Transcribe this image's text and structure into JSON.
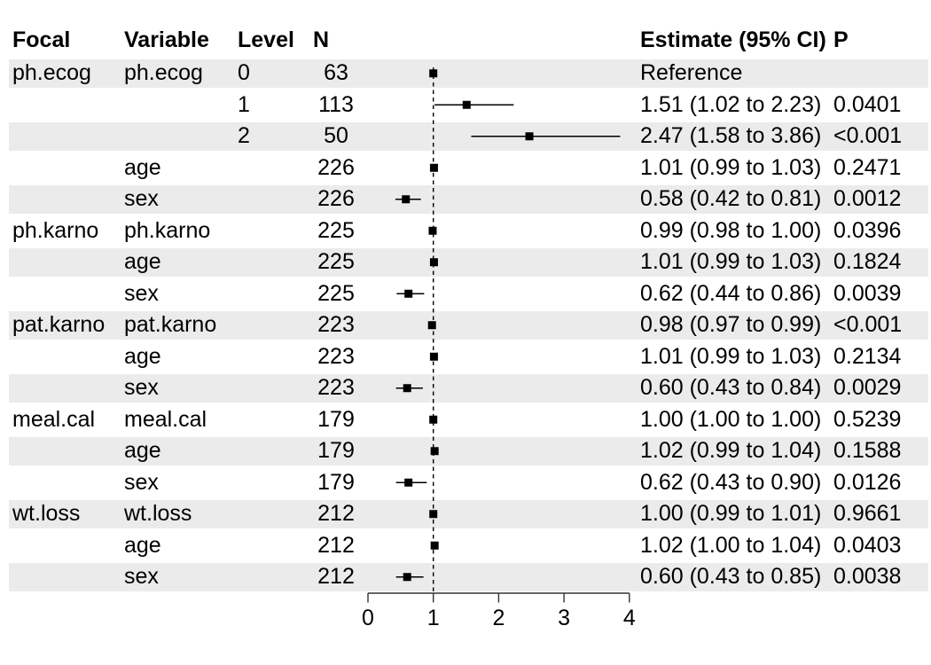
{
  "chart_data": {
    "type": "forest",
    "columns": [
      "Focal",
      "Variable",
      "Level",
      "N",
      "Estimate (95% CI)",
      "P"
    ],
    "rows": [
      {
        "focal": "ph.ecog",
        "variable": "ph.ecog",
        "level": "0",
        "n": "63",
        "estimate_label": "Reference",
        "p": "",
        "estimate": 1.0,
        "ci_low": null,
        "ci_high": null
      },
      {
        "focal": "",
        "variable": "",
        "level": "1",
        "n": "113",
        "estimate_label": "1.51 (1.02 to 2.23)",
        "p": "0.0401",
        "estimate": 1.51,
        "ci_low": 1.02,
        "ci_high": 2.23
      },
      {
        "focal": "",
        "variable": "",
        "level": "2",
        "n": "50",
        "estimate_label": "2.47 (1.58 to 3.86)",
        "p": "<0.001",
        "estimate": 2.47,
        "ci_low": 1.58,
        "ci_high": 3.86
      },
      {
        "focal": "",
        "variable": "age",
        "level": "",
        "n": "226",
        "estimate_label": "1.01 (0.99 to 1.03)",
        "p": "0.2471",
        "estimate": 1.01,
        "ci_low": 0.99,
        "ci_high": 1.03
      },
      {
        "focal": "",
        "variable": "sex",
        "level": "",
        "n": "226",
        "estimate_label": "0.58 (0.42 to 0.81)",
        "p": "0.0012",
        "estimate": 0.58,
        "ci_low": 0.42,
        "ci_high": 0.81
      },
      {
        "focal": "ph.karno",
        "variable": "ph.karno",
        "level": "",
        "n": "225",
        "estimate_label": "0.99 (0.98 to 1.00)",
        "p": "0.0396",
        "estimate": 0.99,
        "ci_low": 0.98,
        "ci_high": 1.0
      },
      {
        "focal": "",
        "variable": "age",
        "level": "",
        "n": "225",
        "estimate_label": "1.01 (0.99 to 1.03)",
        "p": "0.1824",
        "estimate": 1.01,
        "ci_low": 0.99,
        "ci_high": 1.03
      },
      {
        "focal": "",
        "variable": "sex",
        "level": "",
        "n": "225",
        "estimate_label": "0.62 (0.44 to 0.86)",
        "p": "0.0039",
        "estimate": 0.62,
        "ci_low": 0.44,
        "ci_high": 0.86
      },
      {
        "focal": "pat.karno",
        "variable": "pat.karno",
        "level": "",
        "n": "223",
        "estimate_label": "0.98 (0.97 to 0.99)",
        "p": "<0.001",
        "estimate": 0.98,
        "ci_low": 0.97,
        "ci_high": 0.99
      },
      {
        "focal": "",
        "variable": "age",
        "level": "",
        "n": "223",
        "estimate_label": "1.01 (0.99 to 1.03)",
        "p": "0.2134",
        "estimate": 1.01,
        "ci_low": 0.99,
        "ci_high": 1.03
      },
      {
        "focal": "",
        "variable": "sex",
        "level": "",
        "n": "223",
        "estimate_label": "0.60 (0.43 to 0.84)",
        "p": "0.0029",
        "estimate": 0.6,
        "ci_low": 0.43,
        "ci_high": 0.84
      },
      {
        "focal": "meal.cal",
        "variable": "meal.cal",
        "level": "",
        "n": "179",
        "estimate_label": "1.00 (1.00 to 1.00)",
        "p": "0.5239",
        "estimate": 1.0,
        "ci_low": 1.0,
        "ci_high": 1.0
      },
      {
        "focal": "",
        "variable": "age",
        "level": "",
        "n": "179",
        "estimate_label": "1.02 (0.99 to 1.04)",
        "p": "0.1588",
        "estimate": 1.02,
        "ci_low": 0.99,
        "ci_high": 1.04
      },
      {
        "focal": "",
        "variable": "sex",
        "level": "",
        "n": "179",
        "estimate_label": "0.62 (0.43 to 0.90)",
        "p": "0.0126",
        "estimate": 0.62,
        "ci_low": 0.43,
        "ci_high": 0.9
      },
      {
        "focal": "wt.loss",
        "variable": "wt.loss",
        "level": "",
        "n": "212",
        "estimate_label": "1.00 (0.99 to 1.01)",
        "p": "0.9661",
        "estimate": 1.0,
        "ci_low": 0.99,
        "ci_high": 1.01
      },
      {
        "focal": "",
        "variable": "age",
        "level": "",
        "n": "212",
        "estimate_label": "1.02 (1.00 to 1.04)",
        "p": "0.0403",
        "estimate": 1.02,
        "ci_low": 1.0,
        "ci_high": 1.04
      },
      {
        "focal": "",
        "variable": "sex",
        "level": "",
        "n": "212",
        "estimate_label": "0.60 (0.43 to 0.85)",
        "p": "0.0038",
        "estimate": 0.6,
        "ci_low": 0.43,
        "ci_high": 0.85
      }
    ],
    "x_axis": {
      "tick_labels": [
        "0",
        "1",
        "2",
        "3",
        "4"
      ],
      "tick_values": [
        0,
        1,
        2,
        3,
        4
      ]
    },
    "xlim": [
      0,
      4
    ],
    "reference_line": 1.0,
    "legend": "none",
    "grid": "off",
    "colors": {
      "band": "#EBEBEB",
      "marker": "#000000",
      "ci_line": "#000000",
      "reference_dash": "#000000",
      "axis": "#333333",
      "text": "#000000"
    }
  }
}
